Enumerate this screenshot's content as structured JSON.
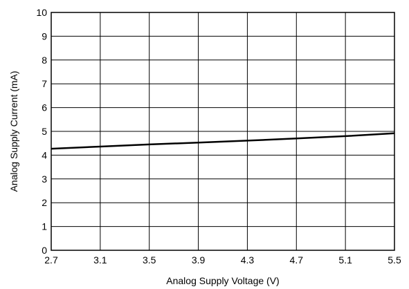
{
  "chart_data": {
    "type": "line",
    "xlabel": "Analog Supply Voltage (V)",
    "ylabel": "Analog Supply Current (mA)",
    "xlim": [
      2.7,
      5.5
    ],
    "ylim": [
      0,
      10
    ],
    "x_ticks": [
      "2.7",
      "3.1",
      "3.5",
      "3.9",
      "4.3",
      "4.7",
      "5.1",
      "5.5"
    ],
    "y_ticks": [
      "0",
      "1",
      "2",
      "3",
      "4",
      "5",
      "6",
      "7",
      "8",
      "9",
      "10"
    ],
    "grid": true,
    "legend": "none",
    "series": [
      {
        "color": "#000000",
        "x": [
          2.7,
          3.1,
          3.5,
          3.9,
          4.3,
          4.7,
          5.1,
          5.5
        ],
        "y": [
          4.27,
          4.36,
          4.45,
          4.53,
          4.61,
          4.7,
          4.8,
          4.92
        ]
      }
    ]
  }
}
